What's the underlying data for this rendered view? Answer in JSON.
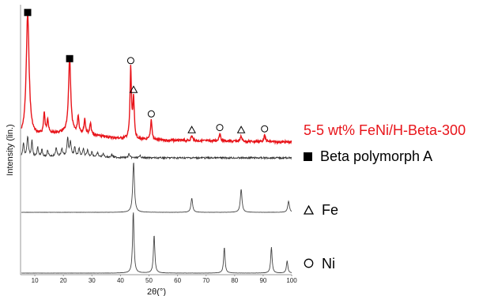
{
  "chart_data": {
    "type": "line",
    "xlabel": "2θ(°)",
    "ylabel": "Intensity (lin.)",
    "xlim": [
      5,
      100
    ],
    "xticks": [
      "10",
      "20",
      "30",
      "40",
      "50",
      "60",
      "70",
      "80",
      "90",
      "100"
    ],
    "grid": false,
    "legend_placement": "right",
    "series": [
      {
        "name": "5-5 wt% FeNi/H-Beta-300",
        "color": "#e8141a",
        "peaks": [
          {
            "x": 7.5,
            "h": 1.0,
            "w": 0.6
          },
          {
            "x": 13.3,
            "h": 0.17,
            "w": 0.3
          },
          {
            "x": 14.5,
            "h": 0.12,
            "w": 0.3
          },
          {
            "x": 22.2,
            "h": 0.62,
            "w": 0.45
          },
          {
            "x": 25.2,
            "h": 0.14,
            "w": 0.3
          },
          {
            "x": 27.5,
            "h": 0.12,
            "w": 0.3
          },
          {
            "x": 29.5,
            "h": 0.09,
            "w": 0.3
          },
          {
            "x": 43.6,
            "h": 0.58,
            "w": 0.3
          },
          {
            "x": 44.6,
            "h": 0.32,
            "w": 0.3
          },
          {
            "x": 50.8,
            "h": 0.17,
            "w": 0.3
          },
          {
            "x": 65.0,
            "h": 0.04,
            "w": 0.35
          },
          {
            "x": 74.8,
            "h": 0.06,
            "w": 0.35
          },
          {
            "x": 82.3,
            "h": 0.04,
            "w": 0.35
          },
          {
            "x": 90.5,
            "h": 0.05,
            "w": 0.35
          }
        ],
        "peak_markers": [
          {
            "x": 7.5,
            "marker": "square"
          },
          {
            "x": 22.2,
            "marker": "square"
          },
          {
            "x": 43.6,
            "marker": "circle"
          },
          {
            "x": 44.6,
            "marker": "triangle"
          },
          {
            "x": 50.8,
            "marker": "circle"
          },
          {
            "x": 65.0,
            "marker": "triangle"
          },
          {
            "x": 74.8,
            "marker": "circle"
          },
          {
            "x": 82.3,
            "marker": "triangle"
          },
          {
            "x": 90.5,
            "marker": "circle"
          }
        ]
      },
      {
        "name": "Beta polymorph A",
        "color": "#333333",
        "peaks": [
          {
            "x": 6.0,
            "h": 0.28,
            "w": 0.3
          },
          {
            "x": 7.5,
            "h": 0.42,
            "w": 0.3
          },
          {
            "x": 9.0,
            "h": 0.35,
            "w": 0.25
          },
          {
            "x": 11.0,
            "h": 0.2,
            "w": 0.25
          },
          {
            "x": 12.5,
            "h": 0.15,
            "w": 0.25
          },
          {
            "x": 14.5,
            "h": 0.12,
            "w": 0.25
          },
          {
            "x": 17.5,
            "h": 0.18,
            "w": 0.25
          },
          {
            "x": 19.5,
            "h": 0.15,
            "w": 0.25
          },
          {
            "x": 21.5,
            "h": 0.36,
            "w": 0.3
          },
          {
            "x": 22.5,
            "h": 0.28,
            "w": 0.3
          },
          {
            "x": 24.0,
            "h": 0.18,
            "w": 0.25
          },
          {
            "x": 25.5,
            "h": 0.16,
            "w": 0.25
          },
          {
            "x": 27.0,
            "h": 0.15,
            "w": 0.25
          },
          {
            "x": 28.5,
            "h": 0.12,
            "w": 0.25
          },
          {
            "x": 30.0,
            "h": 0.1,
            "w": 0.25
          },
          {
            "x": 32.0,
            "h": 0.08,
            "w": 0.25
          },
          {
            "x": 34.0,
            "h": 0.07,
            "w": 0.25
          },
          {
            "x": 37.0,
            "h": 0.06,
            "w": 0.25
          },
          {
            "x": 43.0,
            "h": 0.08,
            "w": 0.25
          },
          {
            "x": 47.0,
            "h": 0.05,
            "w": 0.25
          }
        ]
      },
      {
        "name": "Fe",
        "color": "#444444",
        "peaks": [
          {
            "x": 44.6,
            "h": 1.0,
            "w": 0.35
          },
          {
            "x": 65.0,
            "h": 0.28,
            "w": 0.35
          },
          {
            "x": 82.3,
            "h": 0.46,
            "w": 0.35
          },
          {
            "x": 98.9,
            "h": 0.22,
            "w": 0.35
          }
        ]
      },
      {
        "name": "Ni",
        "color": "#444444",
        "peaks": [
          {
            "x": 44.5,
            "h": 1.0,
            "w": 0.3
          },
          {
            "x": 51.8,
            "h": 0.62,
            "w": 0.3
          },
          {
            "x": 76.4,
            "h": 0.42,
            "w": 0.3
          },
          {
            "x": 92.9,
            "h": 0.42,
            "w": 0.3
          },
          {
            "x": 98.4,
            "h": 0.2,
            "w": 0.3
          }
        ]
      }
    ]
  },
  "legend": {
    "sample_label": "5-5 wt% FeNi/H-Beta-300",
    "sample_color": "#e8141a",
    "beta_label": "Beta polymorph A",
    "beta_symbol": "square",
    "fe_label": "Fe",
    "fe_symbol": "triangle",
    "ni_label": "Ni",
    "ni_symbol": "circle"
  }
}
